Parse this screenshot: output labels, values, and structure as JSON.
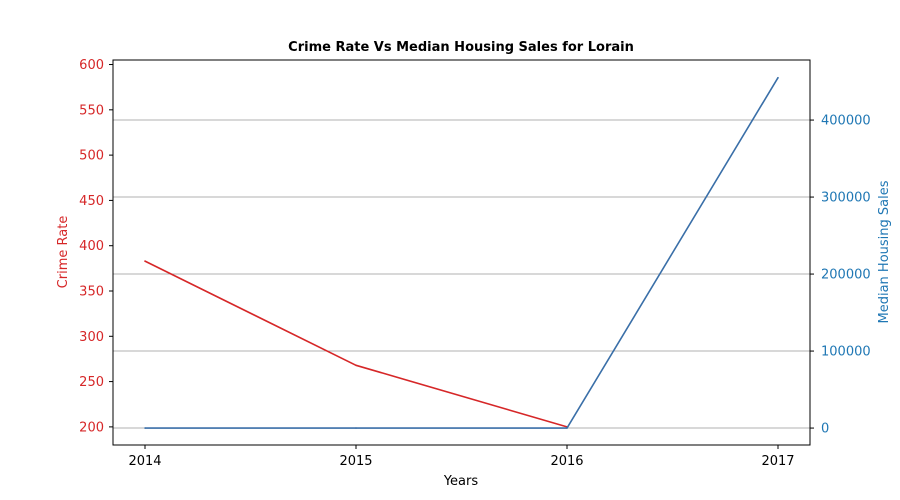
{
  "chart_data": {
    "type": "line",
    "title": "Crime Rate Vs Median Housing Sales for Lorain",
    "xlabel": "Years",
    "x": [
      "2014",
      "2015",
      "2016",
      "2017"
    ],
    "y_left": {
      "label": "Crime Rate",
      "color": "#d62728",
      "ylim": [
        180,
        605
      ],
      "ticks": [
        200,
        250,
        300,
        350,
        400,
        450,
        500,
        550,
        600
      ]
    },
    "y_right": {
      "label": "Median Housing Sales",
      "color": "#1f77b4",
      "ylim": [
        -22000,
        478000
      ],
      "ticks": [
        0,
        100000,
        200000,
        300000,
        400000
      ],
      "grid": true
    },
    "series": [
      {
        "axis": "left",
        "color": "#d62728",
        "values": [
          383,
          268,
          200,
          null
        ]
      },
      {
        "axis": "right",
        "color": "#3a6fa8",
        "values": [
          0,
          0,
          0,
          455000
        ]
      }
    ]
  }
}
